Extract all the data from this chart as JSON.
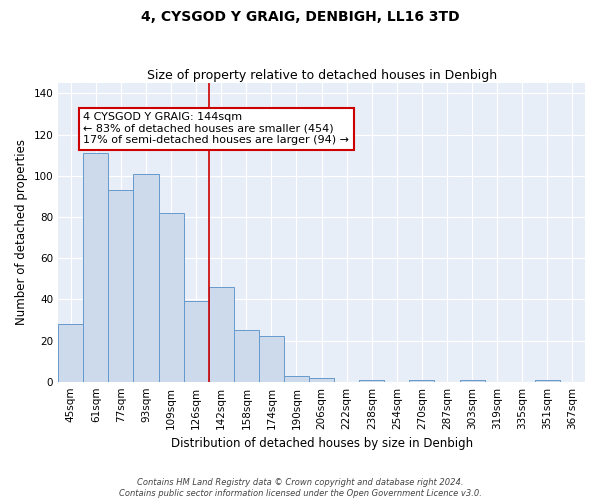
{
  "title": "4, CYSGOD Y GRAIG, DENBIGH, LL16 3TD",
  "subtitle": "Size of property relative to detached houses in Denbigh",
  "xlabel": "Distribution of detached houses by size in Denbigh",
  "ylabel": "Number of detached properties",
  "bins": [
    "45sqm",
    "61sqm",
    "77sqm",
    "93sqm",
    "109sqm",
    "126sqm",
    "142sqm",
    "158sqm",
    "174sqm",
    "190sqm",
    "206sqm",
    "222sqm",
    "238sqm",
    "254sqm",
    "270sqm",
    "287sqm",
    "303sqm",
    "319sqm",
    "335sqm",
    "351sqm",
    "367sqm"
  ],
  "bar_values": [
    28,
    111,
    93,
    101,
    82,
    39,
    46,
    25,
    22,
    3,
    2,
    0,
    1,
    0,
    1,
    0,
    1,
    0,
    0,
    1,
    0
  ],
  "bar_color": "#ccdaec",
  "bar_edge_color": "#6699cc",
  "vline_x_index": 6,
  "vline_color": "#cc0000",
  "annotation_text": "4 CYSGOD Y GRAIG: 144sqm\n← 83% of detached houses are smaller (454)\n17% of semi-detached houses are larger (94) →",
  "annotation_box_color": "#ffffff",
  "annotation_box_edge": "#cc0000",
  "ylim": [
    0,
    145
  ],
  "yticks": [
    0,
    20,
    40,
    60,
    80,
    100,
    120,
    140
  ],
  "fig_bg_color": "#ffffff",
  "plot_bg_color": "#e8eef8",
  "grid_color": "#ffffff",
  "footer_text": "Contains HM Land Registry data © Crown copyright and database right 2024.\nContains public sector information licensed under the Open Government Licence v3.0.",
  "title_fontsize": 10,
  "subtitle_fontsize": 9,
  "xlabel_fontsize": 8.5,
  "ylabel_fontsize": 8.5,
  "tick_fontsize": 7.5,
  "annotation_fontsize": 8,
  "footer_fontsize": 6
}
